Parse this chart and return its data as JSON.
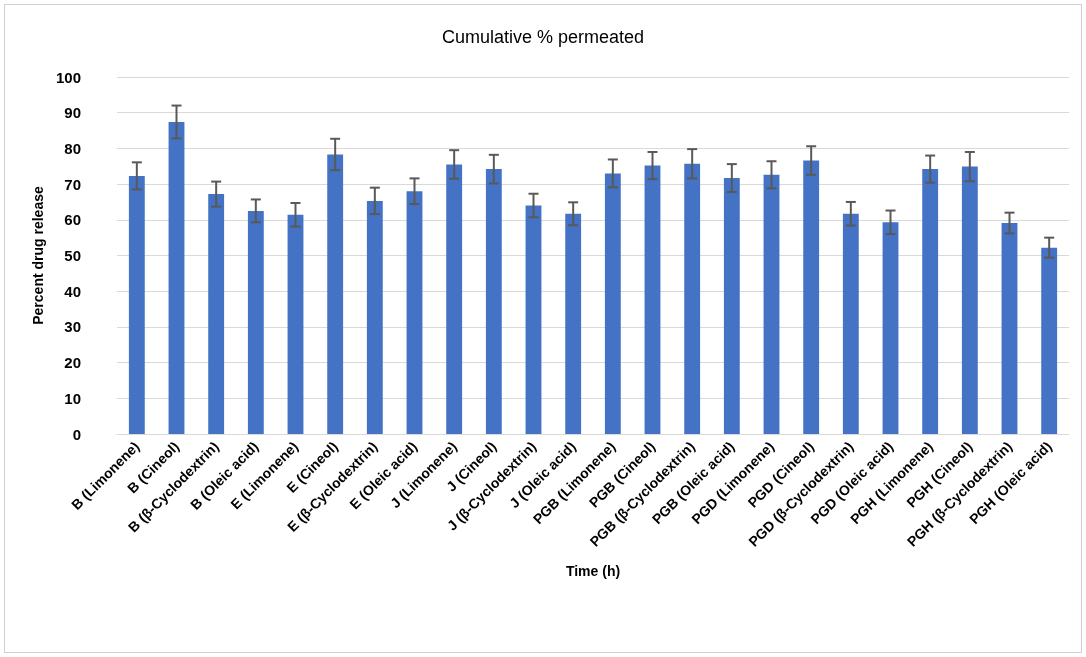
{
  "chart_data": {
    "type": "bar",
    "title": "Cumulative % permeated",
    "xlabel": "Time (h)",
    "ylabel": "Percent drug release",
    "categories": [
      "B (Limonene)",
      "B (Cineol)",
      "B (β-Cyclodextrin)",
      "B (Oleic acid)",
      "E (Limonene)",
      "E (Cineol)",
      "E (β-Cyclodextrin)",
      "E (Oleic acid)",
      "J (Limonene)",
      "J (Cineol)",
      "J (β-Cyclodextrin)",
      "J (Oleic acid)",
      "PGB (Limonene)",
      "PGB (Cineol)",
      "PGB (β-Cyclodextrin)",
      "PGB (Oleic acid)",
      "PGD (Limonene)",
      "PGD (Cineol)",
      "PGD (β-Cyclodextrin)",
      "PGD (Oleic acid)",
      "PGH (Limonene)",
      "PGH (Cineol)",
      "PGH (β-Cyclodextrin)",
      "PGH (Oleic acid)"
    ],
    "values": [
      72.3,
      87.4,
      67.2,
      62.5,
      61.4,
      78.3,
      65.3,
      68.0,
      75.5,
      74.2,
      64.0,
      61.7,
      73.0,
      75.2,
      75.7,
      71.7,
      72.6,
      76.6,
      61.7,
      59.3,
      74.2,
      74.9,
      59.1,
      52.2
    ],
    "errors": [
      3.8,
      4.6,
      3.5,
      3.2,
      3.3,
      4.4,
      3.7,
      3.6,
      4.0,
      4.0,
      3.3,
      3.2,
      3.9,
      3.8,
      4.1,
      3.9,
      3.8,
      4.0,
      3.3,
      3.3,
      3.8,
      4.1,
      2.9,
      2.8
    ],
    "color": "#4472c4",
    "ylim": [
      0,
      100
    ],
    "yticks": [
      0,
      10,
      20,
      30,
      40,
      50,
      60,
      70,
      80,
      90,
      100
    ],
    "grid": "y"
  }
}
